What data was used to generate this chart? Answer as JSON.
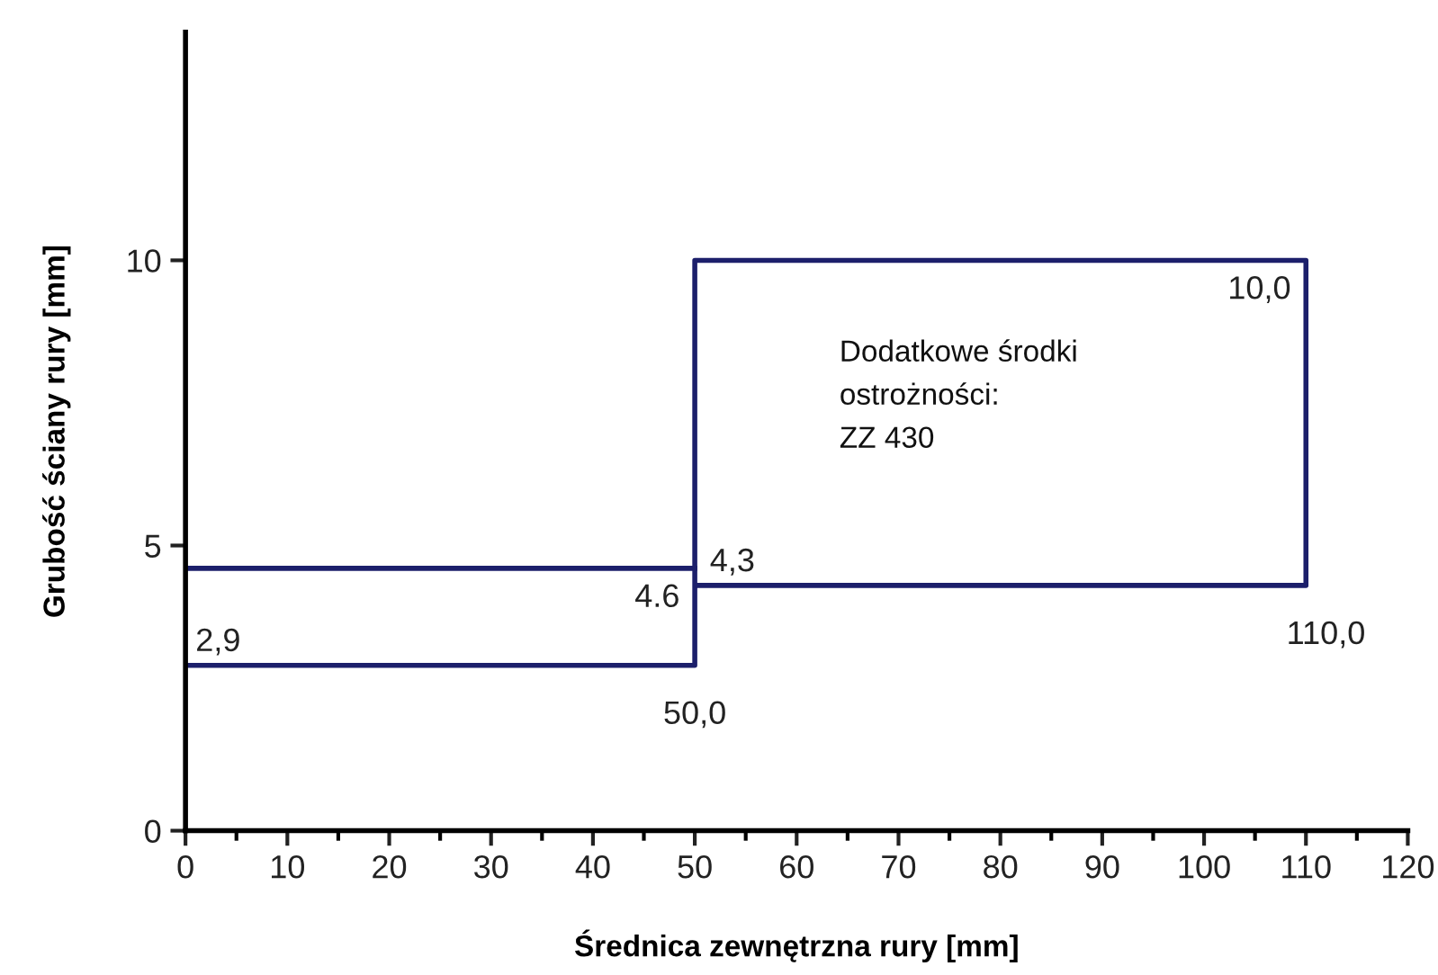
{
  "chart_data": {
    "type": "line",
    "xlabel": "Średnica zewnętrzna rury [mm]",
    "ylabel": "Grubość ściany rury [mm]",
    "series": [
      {
        "color": "#1c1f6b",
        "x": [
          0,
          50
        ],
        "values": [
          4.6,
          4.6
        ]
      },
      {
        "color": "#1c1f6b",
        "x": [
          0,
          50,
          50,
          110,
          110,
          50
        ],
        "values": [
          2.9,
          2.9,
          10,
          10,
          4.3,
          4.3
        ]
      }
    ],
    "annotations": [
      {
        "text": "2,9",
        "x": 0,
        "y": 2.9
      },
      {
        "text": "4.6",
        "x": 50,
        "y": 4.6
      },
      {
        "text": "50,0",
        "x": 50,
        "y": 2.9
      },
      {
        "text": "4,3",
        "x": 50,
        "y": 4.3
      },
      {
        "text": "10,0",
        "x": 110,
        "y": 10
      },
      {
        "text": "110,0",
        "x": 110,
        "y": 4.3
      },
      "Dodatkowe środki\nostrożności:\nZZ 430"
    ],
    "xlim": [
      0,
      120
    ],
    "xticks": [
      0,
      {
        "value": 5,
        "label": null
      },
      10,
      {
        "value": 15,
        "label": null
      },
      20,
      {
        "value": 25,
        "label": null
      },
      30,
      {
        "value": 35,
        "label": null
      },
      40,
      {
        "value": 45,
        "label": null
      },
      50,
      {
        "value": 55,
        "label": null
      },
      60,
      {
        "value": 65,
        "label": null
      },
      70,
      {
        "value": 75,
        "label": null
      },
      80,
      {
        "value": 85,
        "label": null
      },
      90,
      {
        "value": 95,
        "label": null
      },
      100,
      {
        "value": 105,
        "label": null
      },
      110,
      {
        "value": 115,
        "label": null
      },
      120
    ],
    "ylim": [
      0,
      14
    ],
    "yticks": [
      0,
      5,
      10
    ],
    "grid": false,
    "legend": false,
    "marker": "none",
    "line_style": "solid"
  }
}
